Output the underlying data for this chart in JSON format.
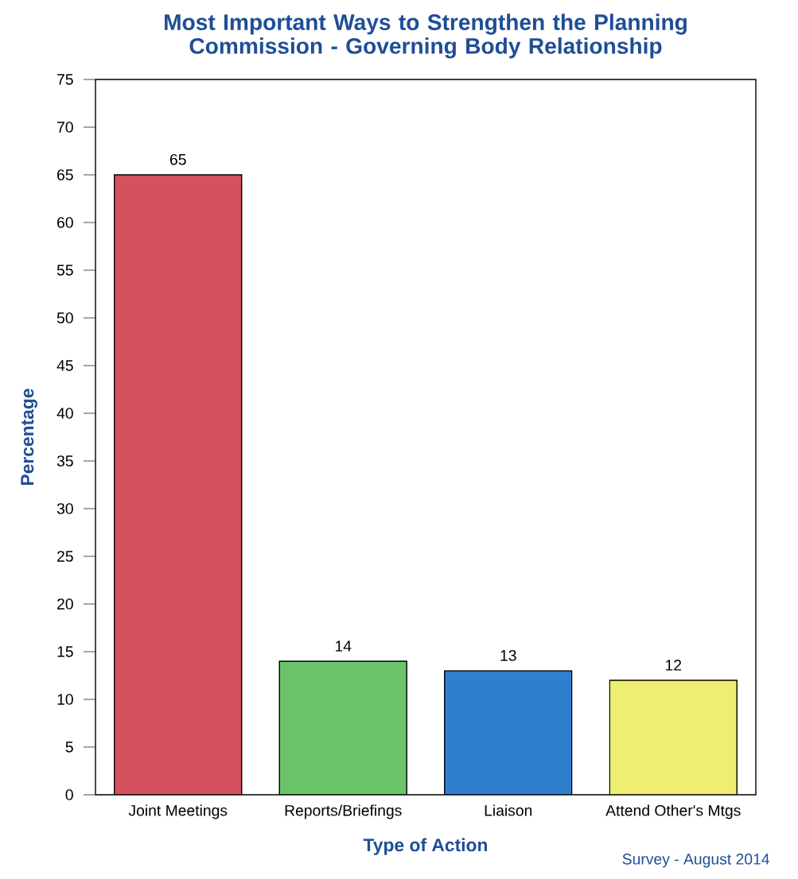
{
  "chart_data": {
    "type": "bar",
    "title": "Most Important Ways to Strengthen the Planning Commission - Governing Body Relationship",
    "xlabel": "Type of Action",
    "ylabel": "Percentage",
    "categories": [
      "Joint Meetings",
      "Reports/Briefings",
      "Liaison",
      "Attend Other's Mtgs"
    ],
    "values": [
      65,
      14,
      13,
      12
    ],
    "colors": [
      "#d4525f",
      "#6cc46a",
      "#2f7fcf",
      "#eeee70"
    ],
    "ylim": [
      0,
      75
    ],
    "yticks": [
      0,
      5,
      10,
      15,
      20,
      25,
      30,
      35,
      40,
      45,
      50,
      55,
      60,
      65,
      70,
      75
    ],
    "data_labels": true,
    "grid": false,
    "annotations": [
      "Survey - August 2014"
    ]
  }
}
